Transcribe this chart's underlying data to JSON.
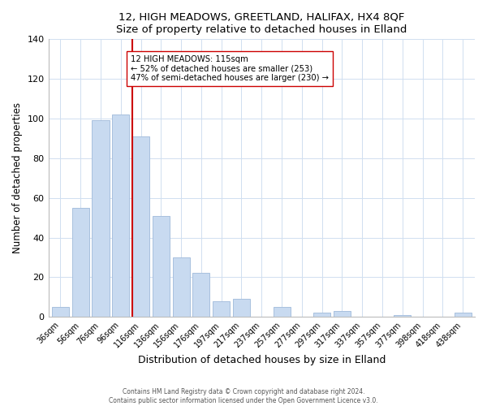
{
  "title": "12, HIGH MEADOWS, GREETLAND, HALIFAX, HX4 8QF",
  "subtitle": "Size of property relative to detached houses in Elland",
  "xlabel": "Distribution of detached houses by size in Elland",
  "ylabel": "Number of detached properties",
  "bar_labels": [
    "36sqm",
    "56sqm",
    "76sqm",
    "96sqm",
    "116sqm",
    "136sqm",
    "156sqm",
    "176sqm",
    "197sqm",
    "217sqm",
    "237sqm",
    "257sqm",
    "277sqm",
    "297sqm",
    "317sqm",
    "337sqm",
    "357sqm",
    "377sqm",
    "398sqm",
    "418sqm",
    "438sqm"
  ],
  "bar_values": [
    5,
    55,
    99,
    102,
    91,
    51,
    30,
    22,
    8,
    9,
    0,
    5,
    0,
    2,
    3,
    0,
    0,
    1,
    0,
    0,
    2
  ],
  "bar_color": "#c8daf0",
  "bar_edge_color": "#a8c0de",
  "vline_index": 4,
  "annotation_title": "12 HIGH MEADOWS: 115sqm",
  "annotation_line1": "← 52% of detached houses are smaller (253)",
  "annotation_line2": "47% of semi-detached houses are larger (230) →",
  "annotation_box_color": "#ffffff",
  "annotation_box_edge": "#cc0000",
  "vline_color": "#cc0000",
  "ylim": [
    0,
    140
  ],
  "yticks": [
    0,
    20,
    40,
    60,
    80,
    100,
    120,
    140
  ],
  "footer1": "Contains HM Land Registry data © Crown copyright and database right 2024.",
  "footer2": "Contains public sector information licensed under the Open Government Licence v3.0."
}
